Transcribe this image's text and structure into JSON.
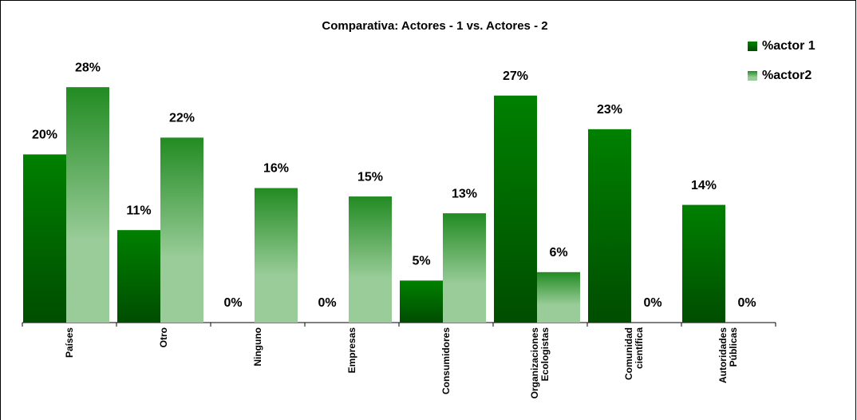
{
  "chart_data": {
    "type": "bar",
    "title": "Comparativa: Actores - 1 vs. Actores - 2",
    "categories": [
      "Países",
      "Otro",
      "Ninguno",
      "Empresas",
      "Consumidores",
      "Organizaciones Ecologistas",
      "Comunidad científica",
      "Autoridades Públicas"
    ],
    "series": [
      {
        "name": "%actor 1",
        "color": "#008000",
        "values": [
          20,
          11,
          0,
          0,
          5,
          27,
          23,
          14
        ],
        "value_labels": [
          "20%",
          "11%",
          "0%",
          "0%",
          "5%",
          "27%",
          "23%",
          "14%"
        ]
      },
      {
        "name": "%actor2",
        "color": "#99cc99",
        "values": [
          28,
          22,
          16,
          15,
          13,
          6,
          0,
          0
        ],
        "value_labels": [
          "28%",
          "22%",
          "16%",
          "15%",
          "13%",
          "6%",
          "0%",
          "0%"
        ]
      }
    ],
    "legend": "top-right"
  }
}
